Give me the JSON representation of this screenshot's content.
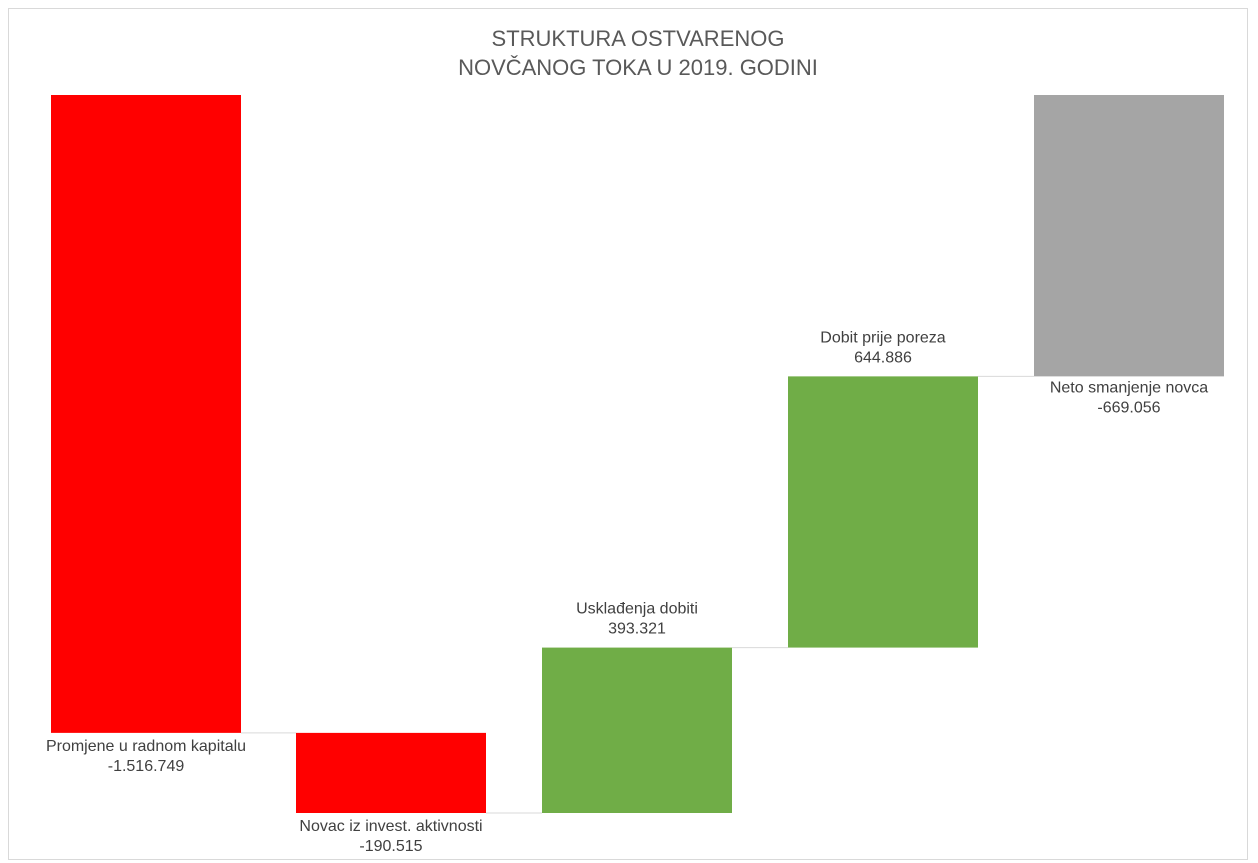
{
  "chart_data": {
    "type": "bar",
    "subtype": "waterfall",
    "title": [
      "STRUKTURA OSTVARENOG",
      "NOVČANOG TOKA U 2019. GODINI"
    ],
    "categories": [
      "Promjene u radnom kapitalu",
      "Novac iz invest. aktivnosti",
      "Usklađenja dobiti",
      "Dobit prije poreza",
      "Neto smanjenje novca"
    ],
    "values": [
      -1516749,
      -190515,
      393321,
      644886,
      -669056
    ],
    "value_labels": [
      "-1.516.749",
      "-190.515",
      "393.321",
      "644.886",
      "-669.056"
    ],
    "kinds": [
      "decrease",
      "decrease",
      "increase",
      "increase",
      "total"
    ],
    "colors": {
      "decrease": "#ff0000",
      "increase": "#70ad47",
      "total": "#a5a5a5",
      "connector": "#d9d9d9"
    },
    "ylim": [
      -1707264,
      0
    ],
    "grid": false,
    "legend": "none"
  }
}
